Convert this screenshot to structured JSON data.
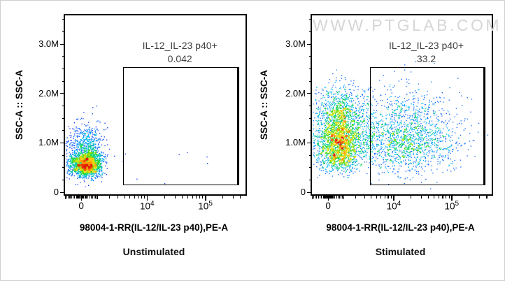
{
  "page": {
    "background": "#ffffff",
    "frame_border_color": "#cfcfcf"
  },
  "watermark": {
    "text": "WWW.PTGLAB.COM",
    "color": "#d6d6d6"
  },
  "text_colors": {
    "axis_text": "#000000",
    "gate_text": "#3f3f3f"
  },
  "chart_data": [
    {
      "type": "pseudocolor_scatter",
      "title": "Unstimulated",
      "xlabel": "98004-1-RR(IL-12/IL-23 p40),PE-A",
      "ylabel": "SSC-A :: SSC-A",
      "x_scale": {
        "type": "biexponential",
        "asinh_divisor": 1500,
        "frac_at_zero": 0.09,
        "frac_per_asinh": 0.1405,
        "max_value": 480000
      },
      "y_scale": {
        "type": "linear",
        "min": -42000,
        "max": 3580000
      },
      "x_ticks": {
        "major": [
          {
            "value": 0,
            "label": "0"
          },
          {
            "value": 10000,
            "label": "10^4"
          },
          {
            "value": 100000,
            "label": "10^5"
          }
        ],
        "medium": [
          -1000,
          1000
        ],
        "minor": [
          -900,
          -800,
          -700,
          -600,
          -500,
          -400,
          -300,
          -250,
          -200,
          -150,
          -100,
          -50,
          50,
          100,
          150,
          200,
          250,
          300,
          400,
          500,
          600,
          700,
          800,
          900,
          2000,
          3000,
          4000,
          5000,
          6000,
          7000,
          8000,
          9000,
          20000,
          30000,
          40000,
          50000,
          60000,
          70000,
          80000,
          90000,
          200000,
          300000,
          400000
        ]
      },
      "y_ticks": {
        "major": [
          {
            "value": 0,
            "label": "0"
          },
          {
            "value": 1000000,
            "label": "1.0M"
          },
          {
            "value": 2000000,
            "label": "2.0M"
          },
          {
            "value": 3000000,
            "label": "3.0M"
          }
        ],
        "minor": [
          250000,
          500000,
          750000,
          1250000,
          1500000,
          1750000,
          2250000,
          2500000,
          2750000,
          3250000,
          3500000
        ]
      },
      "gate": {
        "label": "IL-12_IL-23 p40+",
        "percent": "0.042",
        "x_min": 3800,
        "x_max": 340000,
        "y_min": 170000,
        "y_max": 2530000
      },
      "seed": 11,
      "populations": [
        {
          "name": "ssc-low-negative-cluster",
          "n": 2400,
          "x_center": 300,
          "x_sigma": 520,
          "y_components": [
            {
              "w": 0.72,
              "mean": 560000,
              "sigma": 130000
            },
            {
              "w": 0.28,
              "mean": 920000,
              "sigma": 230000
            }
          ]
        },
        {
          "name": "sparse-background",
          "n": 9,
          "x_log_uniform": [
            1500,
            350000
          ],
          "y_uniform": [
            150000,
            850000
          ]
        }
      ]
    },
    {
      "type": "pseudocolor_scatter",
      "title": "Stimulated",
      "xlabel": "98004-1-RR(IL-12/IL-23 p40),PE-A",
      "ylabel": "SSC-A :: SSC-A",
      "x_scale": {
        "type": "biexponential",
        "asinh_divisor": 1500,
        "frac_at_zero": 0.09,
        "frac_per_asinh": 0.1405,
        "max_value": 480000
      },
      "y_scale": {
        "type": "linear",
        "min": -42000,
        "max": 3580000
      },
      "x_ticks": {
        "major": [
          {
            "value": 0,
            "label": "0"
          },
          {
            "value": 10000,
            "label": "10^4"
          },
          {
            "value": 100000,
            "label": "10^5"
          }
        ],
        "medium": [
          -1000,
          1000
        ],
        "minor": [
          -900,
          -800,
          -700,
          -600,
          -500,
          -400,
          -300,
          -250,
          -200,
          -150,
          -100,
          -50,
          50,
          100,
          150,
          200,
          250,
          300,
          400,
          500,
          600,
          700,
          800,
          900,
          2000,
          3000,
          4000,
          5000,
          6000,
          7000,
          8000,
          9000,
          20000,
          30000,
          40000,
          50000,
          60000,
          70000,
          80000,
          90000,
          200000,
          300000,
          400000
        ]
      },
      "y_ticks": {
        "major": [
          {
            "value": 0,
            "label": "0"
          },
          {
            "value": 1000000,
            "label": "1.0M"
          },
          {
            "value": 2000000,
            "label": "2.0M"
          },
          {
            "value": 3000000,
            "label": "3.0M"
          }
        ],
        "minor": [
          250000,
          500000,
          750000,
          1250000,
          1500000,
          1750000,
          2250000,
          2500000,
          2750000,
          3250000,
          3500000
        ]
      },
      "gate": {
        "label": "IL-12_IL-23 p40+",
        "percent": "33.2",
        "x_min": 3800,
        "x_max": 340000,
        "y_min": 170000,
        "y_max": 2530000
      },
      "seed": 99,
      "populations": [
        {
          "name": "negative-cluster",
          "n": 2500,
          "x_center": 620,
          "x_sigma": 680,
          "y_components": [
            {
              "w": 0.55,
              "mean": 1000000,
              "sigma": 220000
            },
            {
              "w": 0.33,
              "mean": 1580000,
              "sigma": 280000
            },
            {
              "w": 0.12,
              "mean": 620000,
              "sigma": 110000
            }
          ]
        },
        {
          "name": "intermediate-bridge",
          "n": 380,
          "x_center": 2300,
          "x_sigma": 1100,
          "y_components": [
            {
              "w": 0.6,
              "mean": 1050000,
              "sigma": 300000
            },
            {
              "w": 0.4,
              "mean": 1600000,
              "sigma": 300000
            }
          ]
        },
        {
          "name": "il12-il23-p40-positive",
          "n": 1700,
          "x_log10_mean": 4.22,
          "x_log10_sigma": 0.46,
          "y_components": [
            {
              "w": 0.75,
              "mean": 1000000,
              "sigma": 300000
            },
            {
              "w": 0.25,
              "mean": 1550000,
              "sigma": 350000
            }
          ]
        }
      ]
    }
  ]
}
